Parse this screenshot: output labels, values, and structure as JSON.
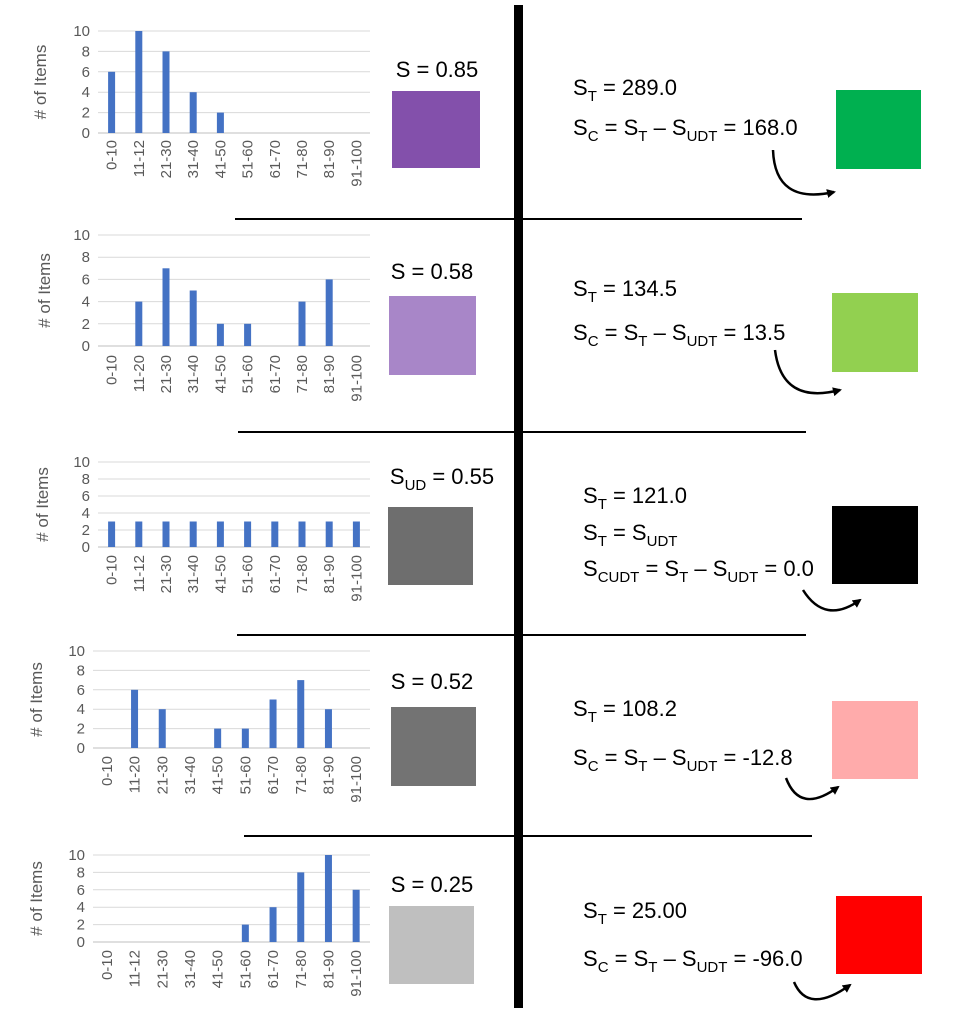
{
  "rows": [
    {
      "s_label": "S = 0.85",
      "s_color": "#8350ab",
      "result_color": "#00b050",
      "eq_lines": [
        {
          "parts": [
            [
              "S",
              ""
            ],
            [
              "T",
              "sub"
            ],
            [
              " = 289.0",
              ""
            ]
          ]
        },
        {
          "parts": [
            [
              "S",
              ""
            ],
            [
              "C",
              "sub"
            ],
            [
              " = S",
              ""
            ],
            [
              "T",
              "sub"
            ],
            [
              " – S",
              ""
            ],
            [
              "UDT",
              "sub"
            ],
            [
              " = 168.0",
              ""
            ]
          ]
        }
      ]
    },
    {
      "s_label": "S = 0.58",
      "s_color": "#a886c8",
      "result_color": "#92d050",
      "eq_lines": [
        {
          "parts": [
            [
              "S",
              ""
            ],
            [
              "T",
              "sub"
            ],
            [
              " = 134.5",
              ""
            ]
          ]
        },
        {
          "parts": [
            [
              "S",
              ""
            ],
            [
              "C",
              "sub"
            ],
            [
              " = S",
              ""
            ],
            [
              "T",
              "sub"
            ],
            [
              " – S",
              ""
            ],
            [
              "UDT",
              "sub"
            ],
            [
              " = 13.5",
              ""
            ]
          ]
        }
      ]
    },
    {
      "s_label_parts": [
        [
          "S",
          ""
        ],
        [
          "UD",
          "sub"
        ],
        [
          " = 0.55",
          ""
        ]
      ],
      "s_color": "#6e6e6e",
      "result_color": "#000000",
      "eq_lines": [
        {
          "parts": [
            [
              "S",
              ""
            ],
            [
              "T",
              "sub"
            ],
            [
              " = 121.0",
              ""
            ]
          ]
        },
        {
          "parts": [
            [
              "S",
              ""
            ],
            [
              "T",
              "sub"
            ],
            [
              " = S",
              ""
            ],
            [
              "UDT",
              "sub"
            ]
          ]
        },
        {
          "parts": [
            [
              "S",
              ""
            ],
            [
              "CUDT",
              "sub"
            ],
            [
              " = S",
              ""
            ],
            [
              "T",
              "sub"
            ],
            [
              " – S",
              ""
            ],
            [
              "UDT",
              "sub"
            ],
            [
              " = 0.0",
              ""
            ]
          ]
        }
      ]
    },
    {
      "s_label": "S = 0.52",
      "s_color": "#737373",
      "result_color": "#ffabab",
      "eq_lines": [
        {
          "parts": [
            [
              "S",
              ""
            ],
            [
              "T",
              "sub"
            ],
            [
              " = 108.2",
              ""
            ]
          ]
        },
        {
          "parts": [
            [
              "S",
              ""
            ],
            [
              "C",
              "sub"
            ],
            [
              " = S",
              ""
            ],
            [
              "T",
              "sub"
            ],
            [
              " – S",
              ""
            ],
            [
              "UDT",
              "sub"
            ],
            [
              " = -12.8",
              ""
            ]
          ]
        }
      ]
    },
    {
      "s_label": "S = 0.25",
      "s_color": "#bfbfbf",
      "result_color": "#ff0000",
      "eq_lines": [
        {
          "parts": [
            [
              "S",
              ""
            ],
            [
              "T",
              "sub"
            ],
            [
              " = 25.00",
              ""
            ]
          ]
        },
        {
          "parts": [
            [
              "S",
              ""
            ],
            [
              "C",
              "sub"
            ],
            [
              " = S",
              ""
            ],
            [
              "T",
              "sub"
            ],
            [
              " – S",
              ""
            ],
            [
              "UDT",
              "sub"
            ],
            [
              " = -96.0",
              ""
            ]
          ]
        }
      ]
    }
  ],
  "chart_data": [
    {
      "type": "bar",
      "ylabel": "# of Items",
      "ylim": [
        0,
        10
      ],
      "yticks": [
        0,
        2,
        4,
        6,
        8,
        10
      ],
      "grid": true,
      "bar_color": "#4472c4",
      "categories": [
        "0-10",
        "11-12",
        "21-30",
        "31-40",
        "41-50",
        "51-60",
        "61-70",
        "71-80",
        "81-90",
        "91-100"
      ],
      "values": [
        6,
        10,
        8,
        4,
        2,
        0,
        0,
        0,
        0,
        0
      ]
    },
    {
      "type": "bar",
      "ylabel": "# of Items",
      "ylim": [
        0,
        10
      ],
      "yticks": [
        0,
        2,
        4,
        6,
        8,
        10
      ],
      "grid": true,
      "bar_color": "#4472c4",
      "categories": [
        "0-10",
        "11-20",
        "21-30",
        "31-40",
        "41-50",
        "51-60",
        "61-70",
        "71-80",
        "81-90",
        "91-100"
      ],
      "values": [
        0,
        4,
        7,
        5,
        2,
        2,
        0,
        4,
        6,
        0
      ]
    },
    {
      "type": "bar",
      "ylabel": "# of Items",
      "ylim": [
        0,
        10
      ],
      "yticks": [
        0,
        2,
        4,
        6,
        8,
        10
      ],
      "grid": true,
      "bar_color": "#4472c4",
      "categories": [
        "0-10",
        "11-12",
        "21-30",
        "31-40",
        "41-50",
        "51-60",
        "61-70",
        "71-80",
        "81-90",
        "91-100"
      ],
      "values": [
        3,
        3,
        3,
        3,
        3,
        3,
        3,
        3,
        3,
        3
      ]
    },
    {
      "type": "bar",
      "ylabel": "# of Items",
      "ylim": [
        0,
        10
      ],
      "yticks": [
        0,
        2,
        4,
        6,
        8,
        10
      ],
      "grid": true,
      "bar_color": "#4472c4",
      "categories": [
        "0-10",
        "11-20",
        "21-30",
        "31-40",
        "41-50",
        "51-60",
        "61-70",
        "71-80",
        "81-90",
        "91-100"
      ],
      "values": [
        0,
        6,
        4,
        0,
        2,
        2,
        5,
        7,
        4,
        0
      ]
    },
    {
      "type": "bar",
      "ylabel": "# of Items",
      "ylim": [
        0,
        10
      ],
      "yticks": [
        0,
        2,
        4,
        6,
        8,
        10
      ],
      "grid": true,
      "bar_color": "#4472c4",
      "categories": [
        "0-10",
        "11-12",
        "21-30",
        "31-40",
        "41-50",
        "51-60",
        "61-70",
        "71-80",
        "81-90",
        "91-100"
      ],
      "values": [
        0,
        0,
        0,
        0,
        0,
        2,
        4,
        8,
        10,
        6
      ]
    }
  ]
}
